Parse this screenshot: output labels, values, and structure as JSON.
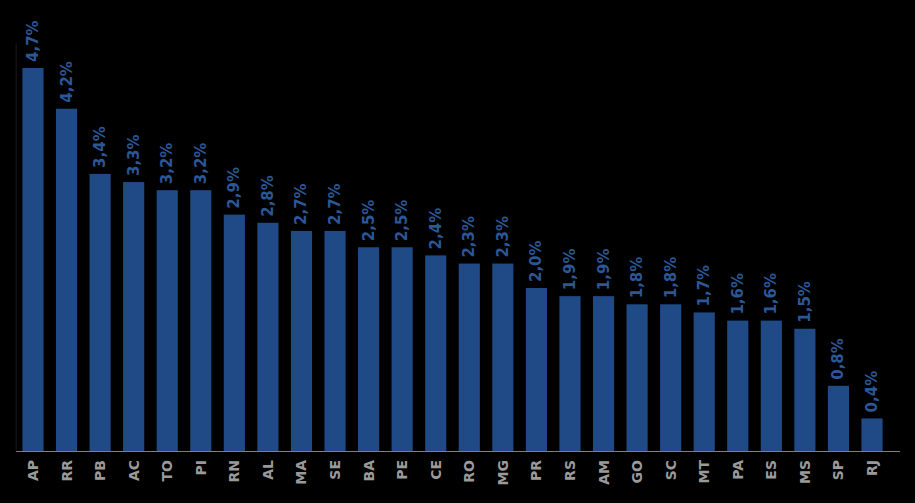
{
  "chart_data": {
    "type": "bar",
    "categories": [
      "AP",
      "RR",
      "PB",
      "AC",
      "TO",
      "PI",
      "RN",
      "AL",
      "MA",
      "SE",
      "BA",
      "PE",
      "CE",
      "RO",
      "MG",
      "PR",
      "RS",
      "AM",
      "GO",
      "SC",
      "MT",
      "PA",
      "ES",
      "MS",
      "SP",
      "RJ"
    ],
    "values": [
      4.7,
      4.2,
      3.4,
      3.3,
      3.2,
      3.2,
      2.9,
      2.8,
      2.7,
      2.7,
      2.5,
      2.5,
      2.4,
      2.3,
      2.3,
      2.0,
      1.9,
      1.9,
      1.8,
      1.8,
      1.7,
      1.6,
      1.6,
      1.5,
      0.8,
      0.4
    ],
    "value_labels": [
      "4,7%",
      "4,2%",
      "3,4%",
      "3,3%",
      "3,2%",
      "3,2%",
      "2,9%",
      "2,8%",
      "2,7%",
      "2,7%",
      "2,5%",
      "2,5%",
      "2,4%",
      "2,3%",
      "2,3%",
      "2,0%",
      "1,9%",
      "1,9%",
      "1,8%",
      "1,8%",
      "1,7%",
      "1,6%",
      "1,6%",
      "1,5%",
      "0,8%",
      "0,4%"
    ],
    "color": "#1f4a86",
    "ylim": [
      0,
      5
    ],
    "grid": false,
    "data_labels": true,
    "tick_labels": "x"
  }
}
